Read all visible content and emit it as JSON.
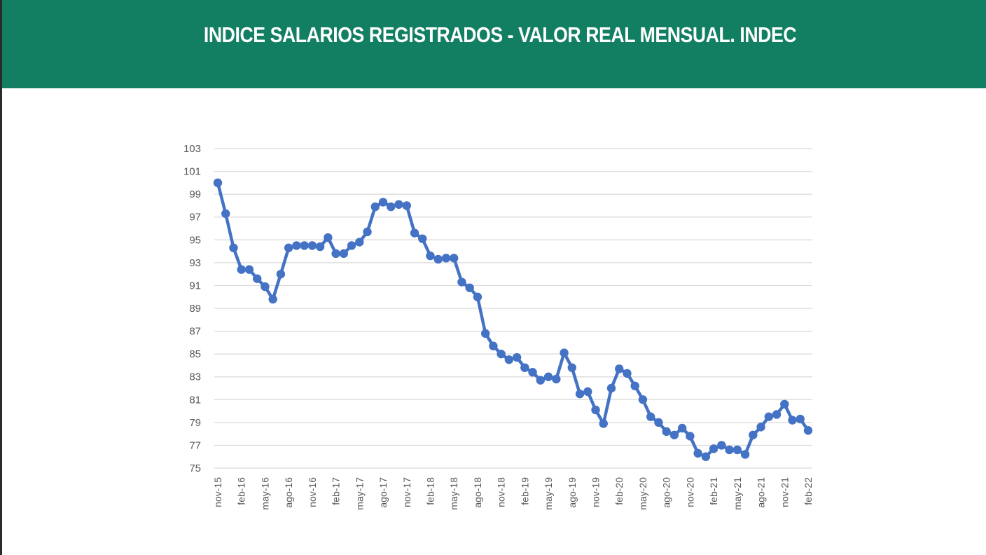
{
  "header": {
    "title": "INDICE SALARIOS REGISTRADOS - VALOR REAL MENSUAL. INDEC"
  },
  "colors": {
    "header_background": "#127f62",
    "title_text": "#ffffff",
    "series_line": "#4472c4",
    "grid": "#d9d9d9",
    "tick_text": "#595959"
  },
  "chart_data": {
    "type": "line",
    "title": "",
    "xlabel": "",
    "ylabel": "",
    "ylim": [
      75,
      103
    ],
    "y_ticks": [
      75,
      77,
      79,
      81,
      83,
      85,
      87,
      89,
      91,
      93,
      95,
      97,
      99,
      101,
      103
    ],
    "x_tick_labels": [
      "nov-15",
      "feb-16",
      "may-16",
      "ago-16",
      "nov-16",
      "feb-17",
      "may-17",
      "ago-17",
      "nov-17",
      "feb-18",
      "may-18",
      "ago-18",
      "nov-18",
      "feb-19",
      "may-19",
      "ago-19",
      "nov-19",
      "feb-20",
      "may-20",
      "ago-20",
      "nov-20",
      "feb-21",
      "may-21",
      "ago-21",
      "nov-21",
      "feb-22"
    ],
    "grid": "horizontal",
    "legend": "none",
    "x": [
      "nov-15",
      "dic-15",
      "ene-16",
      "feb-16",
      "mar-16",
      "abr-16",
      "may-16",
      "jun-16",
      "jul-16",
      "ago-16",
      "sep-16",
      "oct-16",
      "nov-16",
      "dic-16",
      "ene-17",
      "feb-17",
      "mar-17",
      "abr-17",
      "may-17",
      "jun-17",
      "jul-17",
      "ago-17",
      "sep-17",
      "oct-17",
      "nov-17",
      "dic-17",
      "ene-18",
      "feb-18",
      "mar-18",
      "abr-18",
      "may-18",
      "jun-18",
      "jul-18",
      "ago-18",
      "sep-18",
      "oct-18",
      "nov-18",
      "dic-18",
      "ene-19",
      "feb-19",
      "mar-19",
      "abr-19",
      "may-19",
      "jun-19",
      "jul-19",
      "ago-19",
      "sep-19",
      "oct-19",
      "nov-19",
      "dic-19",
      "ene-20",
      "feb-20",
      "mar-20",
      "abr-20",
      "may-20",
      "jun-20",
      "jul-20",
      "ago-20",
      "sep-20",
      "oct-20",
      "nov-20",
      "dic-20",
      "ene-21",
      "feb-21",
      "mar-21",
      "abr-21",
      "may-21",
      "jun-21",
      "jul-21",
      "ago-21",
      "sep-21",
      "oct-21",
      "nov-21",
      "dic-21",
      "ene-22",
      "feb-22"
    ],
    "series": [
      {
        "values": [
          100.0,
          97.3,
          94.3,
          92.4,
          92.4,
          91.6,
          90.9,
          89.8,
          92.0,
          94.3,
          94.5,
          94.5,
          94.5,
          94.4,
          95.2,
          93.8,
          93.8,
          94.5,
          94.8,
          95.7,
          97.9,
          98.3,
          97.9,
          98.1,
          98.0,
          95.6,
          95.1,
          93.6,
          93.3,
          93.4,
          93.4,
          91.3,
          90.8,
          90.0,
          86.8,
          85.7,
          85.0,
          84.5,
          84.7,
          83.8,
          83.4,
          82.7,
          83.0,
          82.8,
          85.1,
          83.8,
          81.5,
          81.7,
          80.1,
          78.9,
          82.0,
          83.7,
          83.3,
          82.2,
          81.0,
          79.5,
          79.0,
          78.2,
          77.9,
          78.5,
          77.8,
          76.3,
          76.0,
          76.7,
          77.0,
          76.6,
          76.6,
          76.2,
          77.9,
          78.6,
          79.5,
          79.7,
          80.6,
          79.2,
          79.3,
          78.3
        ]
      }
    ]
  }
}
